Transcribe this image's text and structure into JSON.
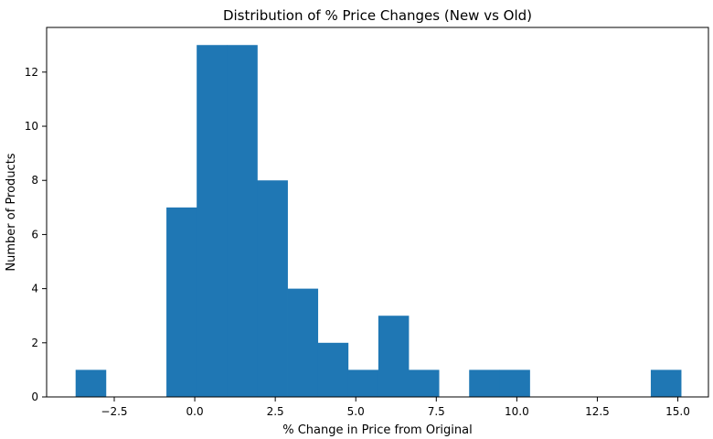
{
  "chart_data": {
    "type": "bar",
    "subtype": "histogram",
    "title": "Distribution of % Price Changes (New vs Old)",
    "xlabel": "% Change in Price from Original",
    "ylabel": "Number of Products",
    "xlim": [
      -4.6,
      15.95
    ],
    "ylim": [
      0,
      13.65
    ],
    "bin_edges": [
      -3.7,
      -2.76,
      -1.82,
      -0.88,
      0.06,
      1.0,
      1.94,
      2.88,
      3.82,
      4.76,
      5.7,
      6.64,
      7.58,
      8.52,
      9.46,
      10.4,
      11.34,
      12.28,
      13.22,
      14.16,
      15.1
    ],
    "counts": [
      1,
      0,
      0,
      7,
      13,
      13,
      8,
      4,
      2,
      1,
      3,
      1,
      0,
      1,
      1,
      0,
      0,
      0,
      0,
      1
    ],
    "x_ticks": [
      {
        "value": -2.5,
        "label": "−2.5"
      },
      {
        "value": 0.0,
        "label": "0.0"
      },
      {
        "value": 2.5,
        "label": "2.5"
      },
      {
        "value": 5.0,
        "label": "5.0"
      },
      {
        "value": 7.5,
        "label": "7.5"
      },
      {
        "value": 10.0,
        "label": "10.0"
      },
      {
        "value": 12.5,
        "label": "12.5"
      },
      {
        "value": 15.0,
        "label": "15.0"
      }
    ],
    "y_ticks": [
      {
        "value": 0,
        "label": "0"
      },
      {
        "value": 2,
        "label": "2"
      },
      {
        "value": 4,
        "label": "4"
      },
      {
        "value": 6,
        "label": "6"
      },
      {
        "value": 8,
        "label": "8"
      },
      {
        "value": 10,
        "label": "10"
      },
      {
        "value": 12,
        "label": "12"
      }
    ],
    "grid": false,
    "bar_color": "#1f77b4"
  }
}
